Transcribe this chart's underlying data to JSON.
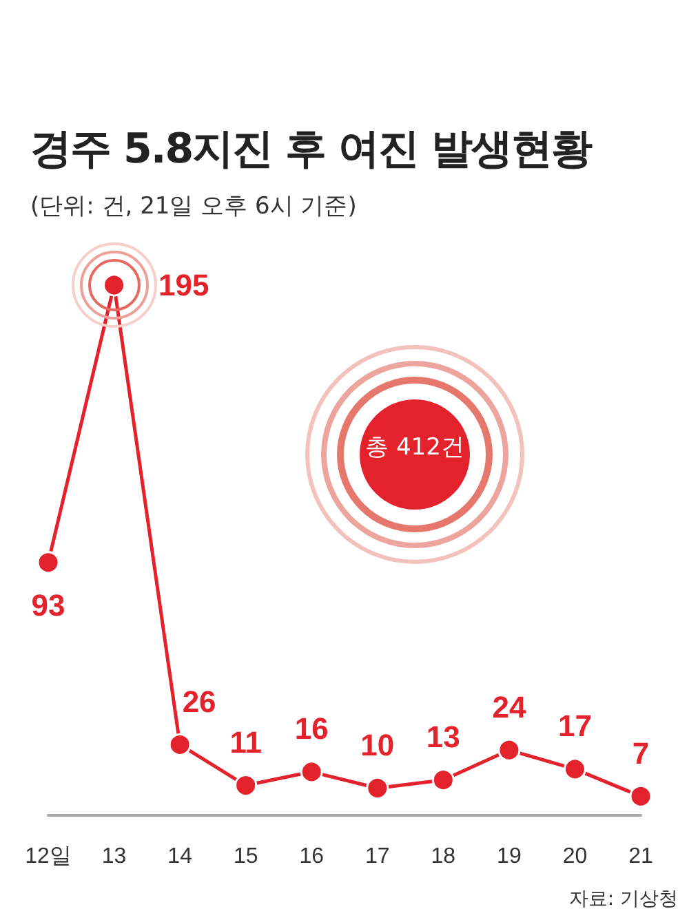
{
  "chart_data": {
    "type": "line",
    "title": "경주 5.8지진 후 여진 발생현황",
    "subtitle": "(단위: 건, 21일 오후 6시 기준)",
    "categories": [
      "12일",
      "13",
      "14",
      "15",
      "16",
      "17",
      "18",
      "19",
      "20",
      "21"
    ],
    "series": [
      {
        "color": "#e3222b",
        "values": [
          93,
          195,
          26,
          11,
          16,
          10,
          13,
          24,
          17,
          7
        ]
      }
    ],
    "data_labels": true,
    "marker": "circle",
    "grid": false,
    "tick_labels": "x",
    "annotations": [
      "총 412건",
      "자료: 기상청"
    ]
  }
}
